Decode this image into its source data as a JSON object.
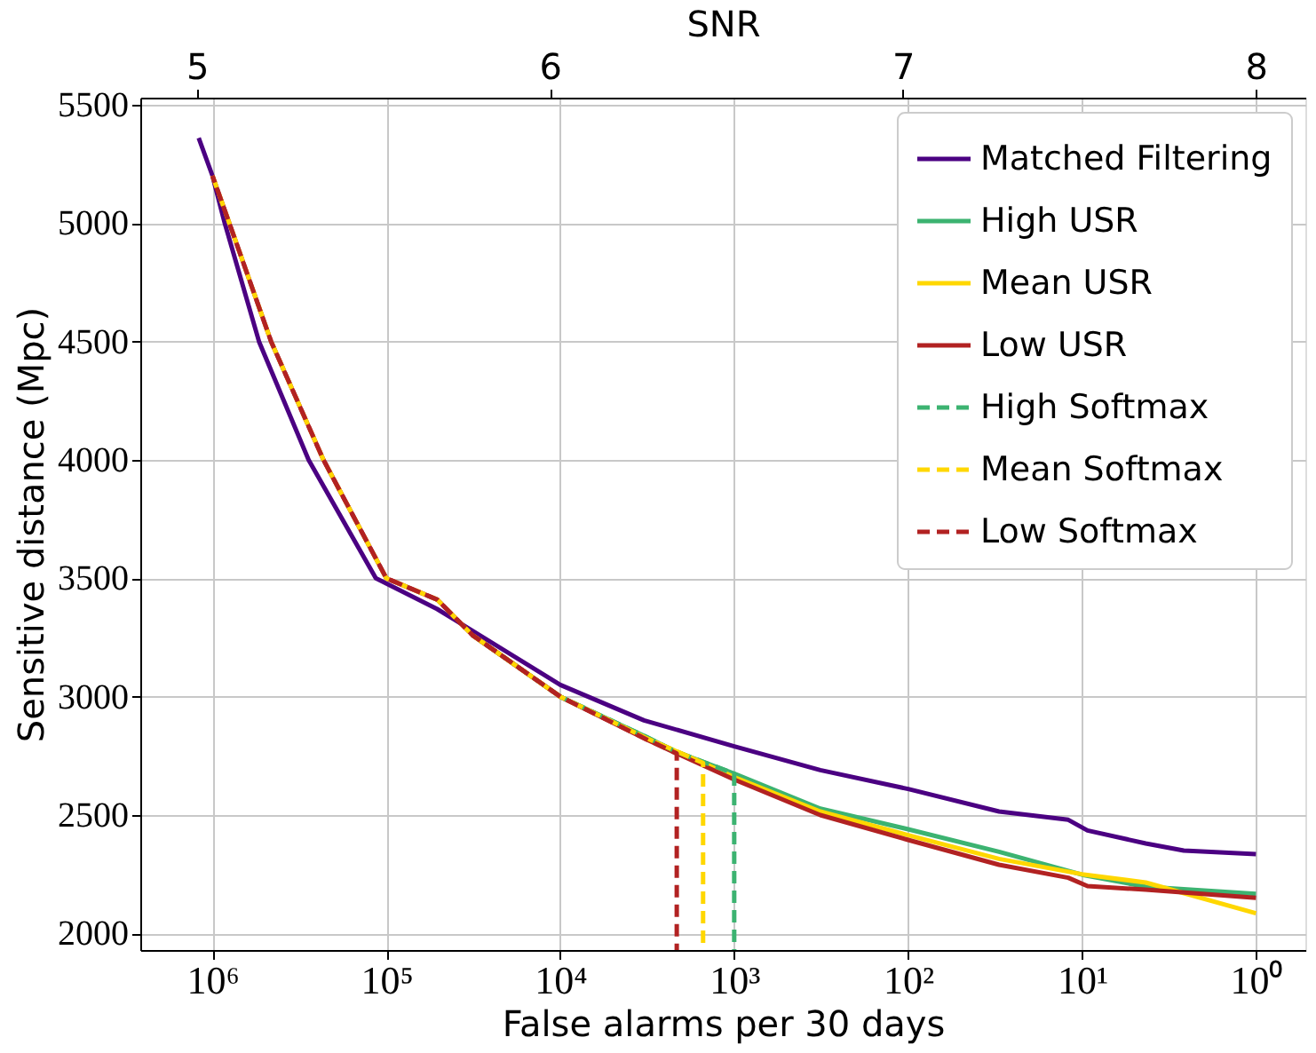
{
  "chart_data": {
    "type": "line",
    "xlabel": "False alarms per 30 days",
    "ylabel": "Sensitive distance (Mpc)",
    "x2label": "SNR",
    "log": "x",
    "grid": true,
    "legend": "top right",
    "marker": "none",
    "xlim": [
      2600000,
      0.52
    ],
    "ylim": [
      1930,
      5530
    ],
    "xticks": [
      {
        "value": 1000000,
        "label": "10⁶"
      },
      {
        "value": 100000,
        "label": "10⁵"
      },
      {
        "value": 10000,
        "label": "10⁴"
      },
      {
        "value": 1000,
        "label": "10³"
      },
      {
        "value": 100,
        "label": "10²"
      },
      {
        "value": 10,
        "label": "10¹"
      },
      {
        "value": 1,
        "label": "10⁰"
      }
    ],
    "yticks": [
      2000,
      2500,
      3000,
      3500,
      4000,
      4500,
      5000,
      5500
    ],
    "x2lim": [
      4.84,
      8.14
    ],
    "x2ticks": [
      5,
      6,
      7,
      8
    ],
    "series": [
      {
        "name": "Matched Filtering",
        "color": "#4b0082",
        "line_style": "solid",
        "x": [
          1200000,
          1000000,
          850000,
          540000,
          280000,
          115000,
          51000,
          10000,
          3300,
          1000,
          320,
          100,
          30,
          12,
          9.3,
          4.3,
          2.6,
          1
        ],
        "values": [
          5360,
          5200,
          5000,
          4500,
          4000,
          3500,
          3370,
          3050,
          2900,
          2790,
          2690,
          2610,
          2515,
          2480,
          2435,
          2380,
          2350,
          2335
        ]
      },
      {
        "name": "High USR",
        "color": "#3cb371",
        "line_style": "solid",
        "x": [
          null,
          null,
          null,
          null,
          null,
          null,
          32000,
          10000,
          3200,
          2200,
          1000,
          320,
          100,
          30,
          10,
          4.3,
          1
        ],
        "values": [
          null,
          null,
          null,
          null,
          null,
          null,
          3260,
          3000,
          2830,
          2770,
          2675,
          2527,
          2440,
          2345,
          2248,
          2197,
          2167
        ]
      },
      {
        "name": "Mean USR",
        "color": "#ffd700",
        "line_style": "solid",
        "x": [
          null,
          null,
          null,
          null,
          null,
          null,
          32000,
          10000,
          3200,
          1510,
          1000,
          320,
          100,
          30,
          10,
          4.3,
          1
        ],
        "values": [
          null,
          null,
          null,
          null,
          null,
          null,
          3260,
          3000,
          2825,
          2720,
          2660,
          2515,
          2415,
          2315,
          2250,
          2215,
          2085
        ]
      },
      {
        "name": "Low USR",
        "color": "#b22222",
        "line_style": "solid",
        "x": [
          1000000,
          800000,
          460000,
          230000,
          100000,
          51000,
          32000,
          10000,
          3200,
          2140,
          1000,
          320,
          100,
          30,
          12,
          9.3,
          4.3,
          1
        ],
        "values": [
          5200,
          5000,
          4500,
          4000,
          3500,
          3410,
          3260,
          3000,
          2820,
          2760,
          2650,
          2500,
          2395,
          2290,
          2235,
          2200,
          2185,
          2150
        ]
      },
      {
        "name": "High Softmax",
        "color": "#3cb371",
        "line_style": "dashed",
        "x": [
          null,
          null,
          null,
          null,
          null,
          null,
          null,
          10000,
          3200,
          2200,
          1000,
          1000
        ],
        "values": [
          null,
          null,
          null,
          null,
          null,
          null,
          null,
          3000,
          2830,
          2770,
          2675,
          1930
        ]
      },
      {
        "name": "Mean Softmax",
        "color": "#ffd700",
        "line_style": "dashed",
        "x": [
          1000000,
          800000,
          460000,
          230000,
          100000,
          51000,
          32000,
          10000,
          3200,
          1510,
          1510
        ],
        "values": [
          5200,
          5000,
          4500,
          4000,
          3500,
          3410,
          3260,
          3000,
          2825,
          2720,
          1930
        ]
      },
      {
        "name": "Low Softmax",
        "color": "#b22222",
        "line_style": "dashed",
        "x": [
          1000000,
          800000,
          460000,
          230000,
          100000,
          51000,
          32000,
          10000,
          3200,
          2140,
          2140
        ],
        "values": [
          5200,
          5000,
          4500,
          4000,
          3500,
          3410,
          3260,
          3000,
          2820,
          2760,
          1930
        ]
      }
    ]
  }
}
